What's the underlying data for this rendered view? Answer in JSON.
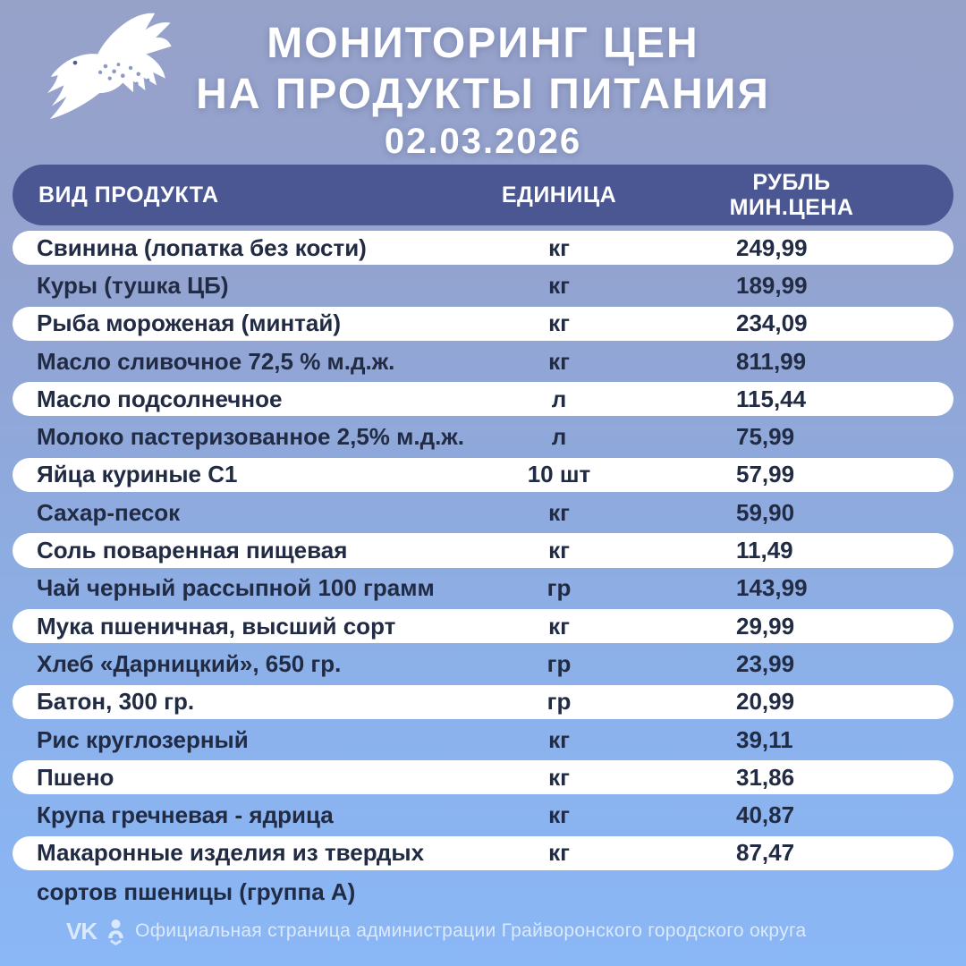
{
  "header": {
    "title_line1": "МОНИТОРИНГ ЦЕН",
    "title_line2": "НА ПРОДУКТЫ ПИТАНИЯ",
    "date": "02.03.2026"
  },
  "table": {
    "columns": {
      "product": "ВИД ПРОДУКТА",
      "unit": "ЕДИНИЦА",
      "price_line1": "РУБЛЬ",
      "price_line2": "МИН.ЦЕНА"
    },
    "rows": [
      {
        "name": "Свинина (лопатка без кости)",
        "unit": "кг",
        "price": "249,99"
      },
      {
        "name": "Куры (тушка ЦБ)",
        "unit": "кг",
        "price": "189,99"
      },
      {
        "name": "Рыба мороженая (минтай)",
        "unit": "кг",
        "price": "234,09"
      },
      {
        "name": "Масло сливочное 72,5 % м.д.ж.",
        "unit": "кг",
        "price": "811,99"
      },
      {
        "name": "Масло подсолнечное",
        "unit": "л",
        "price": "115,44"
      },
      {
        "name": "Молоко пастеризованное 2,5% м.д.ж.",
        "unit": "л",
        "price": "75,99"
      },
      {
        "name": "Яйца куриные С1",
        "unit": "10 шт",
        "price": "57,99"
      },
      {
        "name": "Сахар-песок",
        "unit": "кг",
        "price": "59,90"
      },
      {
        "name": "Соль поваренная пищевая",
        "unit": "кг",
        "price": "11,49"
      },
      {
        "name": "Чай черный рассыпной 100 грамм",
        "unit": "гр",
        "price": "143,99"
      },
      {
        "name": "Мука пшеничная, высший сорт",
        "unit": "кг",
        "price": "29,99"
      },
      {
        "name": "Хлеб «Дарницкий», 650 гр.",
        "unit": "гр",
        "price": "23,99"
      },
      {
        "name": "Батон, 300 гр.",
        "unit": "гр",
        "price": "20,99"
      },
      {
        "name": "Рис круглозерный",
        "unit": "кг",
        "price": "39,11"
      },
      {
        "name": "Пшено",
        "unit": "кг",
        "price": "31,86"
      },
      {
        "name": "Крупа гречневая - ядрица",
        "unit": "кг",
        "price": "40,87"
      },
      {
        "name": "Макаронные изделия из твердых",
        "name_line2": "сортов пшеницы (группа А)",
        "unit": "кг",
        "price": "87,47"
      }
    ]
  },
  "footer": {
    "vk_label": "VK",
    "icons": [
      "vk-icon",
      "ok-icon"
    ],
    "text": "Официальная страница администрации Грайворонского городского округа"
  },
  "colors": {
    "bg_top": "#97a2c9",
    "bg_bottom": "#8ab7f6",
    "header_bar": "#4b5792",
    "row_band": "#ffffff",
    "text_dark": "#222b44",
    "text_light": "#ffffff"
  }
}
